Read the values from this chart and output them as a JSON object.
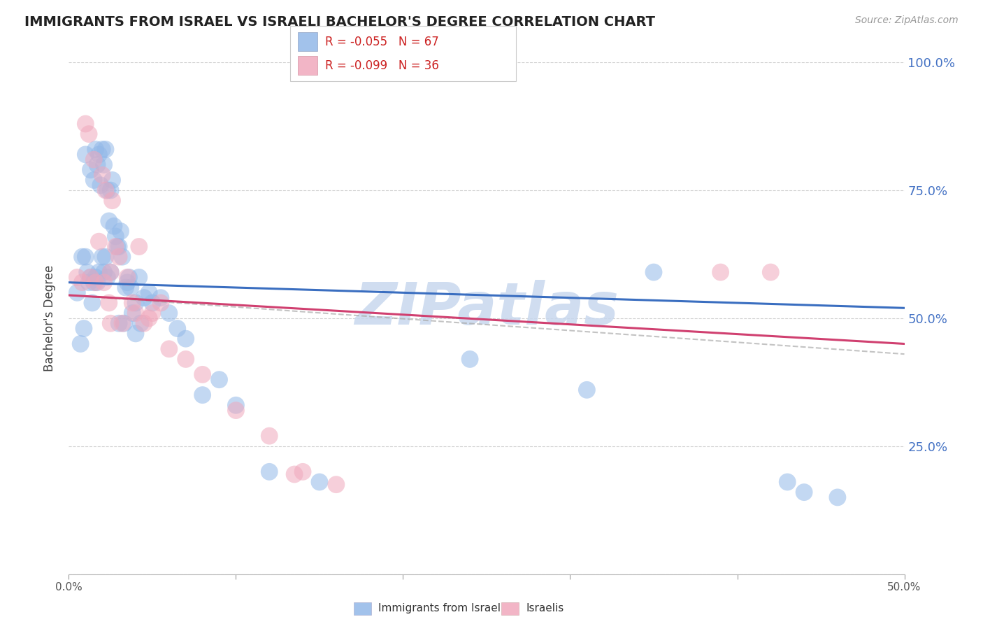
{
  "title": "IMMIGRANTS FROM ISRAEL VS ISRAELI BACHELOR'S DEGREE CORRELATION CHART",
  "source": "Source: ZipAtlas.com",
  "ylabel": "Bachelor's Degree",
  "legend_blue_R": "R = -0.055",
  "legend_blue_N": "N = 67",
  "legend_pink_R": "R = -0.099",
  "legend_pink_N": "N = 36",
  "legend_blue_label": "Immigrants from Israel",
  "legend_pink_label": "Israelis",
  "xlim": [
    0.0,
    0.5
  ],
  "ylim": [
    0.0,
    1.0
  ],
  "ytick_vals": [
    0.0,
    0.25,
    0.5,
    0.75,
    1.0
  ],
  "xtick_vals": [
    0.0,
    0.1,
    0.2,
    0.3,
    0.4,
    0.5
  ],
  "blue_color": "#92B8E8",
  "pink_color": "#F0A8BC",
  "blue_line_color": "#3A6EC0",
  "pink_line_color": "#D04070",
  "dashed_line_color": "#AAAAAA",
  "grid_color": "#CCCCCC",
  "watermark": "ZIPatlas",
  "watermark_color": "#C8D8EE",
  "blue_scatter_x": [
    0.005,
    0.007,
    0.008,
    0.009,
    0.01,
    0.01,
    0.011,
    0.012,
    0.013,
    0.013,
    0.014,
    0.015,
    0.015,
    0.016,
    0.016,
    0.017,
    0.017,
    0.018,
    0.018,
    0.019,
    0.02,
    0.02,
    0.021,
    0.021,
    0.022,
    0.022,
    0.023,
    0.023,
    0.024,
    0.025,
    0.025,
    0.026,
    0.027,
    0.028,
    0.029,
    0.03,
    0.03,
    0.031,
    0.032,
    0.033,
    0.034,
    0.035,
    0.036,
    0.037,
    0.038,
    0.04,
    0.04,
    0.042,
    0.043,
    0.045,
    0.048,
    0.05,
    0.055,
    0.06,
    0.065,
    0.07,
    0.08,
    0.09,
    0.1,
    0.12,
    0.15,
    0.24,
    0.31,
    0.35,
    0.43,
    0.44,
    0.46
  ],
  "blue_scatter_y": [
    0.55,
    0.45,
    0.62,
    0.48,
    0.82,
    0.62,
    0.59,
    0.57,
    0.79,
    0.58,
    0.53,
    0.77,
    0.57,
    0.83,
    0.58,
    0.8,
    0.57,
    0.82,
    0.59,
    0.76,
    0.83,
    0.62,
    0.8,
    0.59,
    0.83,
    0.62,
    0.75,
    0.58,
    0.69,
    0.75,
    0.59,
    0.77,
    0.68,
    0.66,
    0.64,
    0.64,
    0.49,
    0.67,
    0.62,
    0.49,
    0.56,
    0.57,
    0.58,
    0.56,
    0.51,
    0.53,
    0.47,
    0.58,
    0.49,
    0.54,
    0.55,
    0.53,
    0.54,
    0.51,
    0.48,
    0.46,
    0.35,
    0.38,
    0.33,
    0.2,
    0.18,
    0.42,
    0.36,
    0.59,
    0.18,
    0.16,
    0.15
  ],
  "pink_scatter_x": [
    0.005,
    0.008,
    0.01,
    0.012,
    0.013,
    0.015,
    0.016,
    0.018,
    0.02,
    0.021,
    0.022,
    0.024,
    0.025,
    0.026,
    0.028,
    0.03,
    0.032,
    0.035,
    0.038,
    0.04,
    0.042,
    0.045,
    0.048,
    0.05,
    0.055,
    0.06,
    0.07,
    0.08,
    0.1,
    0.12,
    0.14,
    0.16,
    0.39,
    0.42,
    0.135,
    0.025
  ],
  "pink_scatter_y": [
    0.58,
    0.57,
    0.88,
    0.86,
    0.58,
    0.81,
    0.57,
    0.65,
    0.78,
    0.57,
    0.75,
    0.53,
    0.59,
    0.73,
    0.64,
    0.62,
    0.49,
    0.58,
    0.53,
    0.51,
    0.64,
    0.49,
    0.5,
    0.51,
    0.53,
    0.44,
    0.42,
    0.39,
    0.32,
    0.27,
    0.2,
    0.175,
    0.59,
    0.59,
    0.195,
    0.49
  ],
  "blue_trend_y": [
    0.57,
    0.52
  ],
  "pink_trend_y": [
    0.545,
    0.45
  ],
  "dashed_trend_y": [
    0.545,
    0.43
  ]
}
